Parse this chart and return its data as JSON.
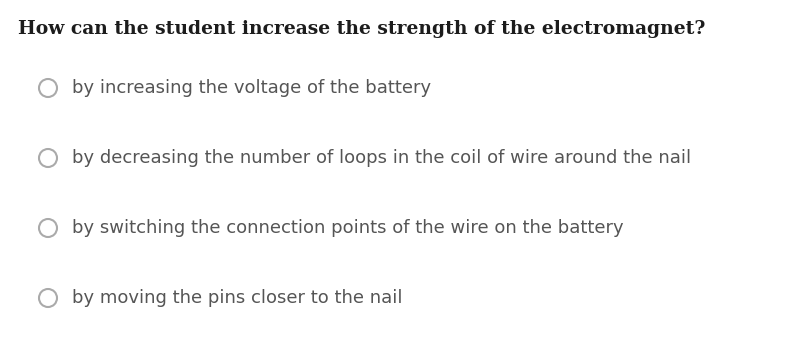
{
  "title": "How can the student increase the strength of the electromagnet?",
  "title_fontsize": 13.5,
  "title_fontweight": "bold",
  "title_color": "#1c1c1c",
  "options": [
    "by increasing the voltage of the battery",
    "by decreasing the number of loops in the coil of wire around the nail",
    "by switching the connection points of the wire on the battery",
    "by moving the pins closer to the nail"
  ],
  "option_fontsize": 13,
  "option_color": "#555555",
  "circle_color": "#aaaaaa",
  "circle_linewidth": 1.5,
  "background_color": "#ffffff",
  "figsize": [
    8.0,
    3.58
  ],
  "dpi": 100
}
